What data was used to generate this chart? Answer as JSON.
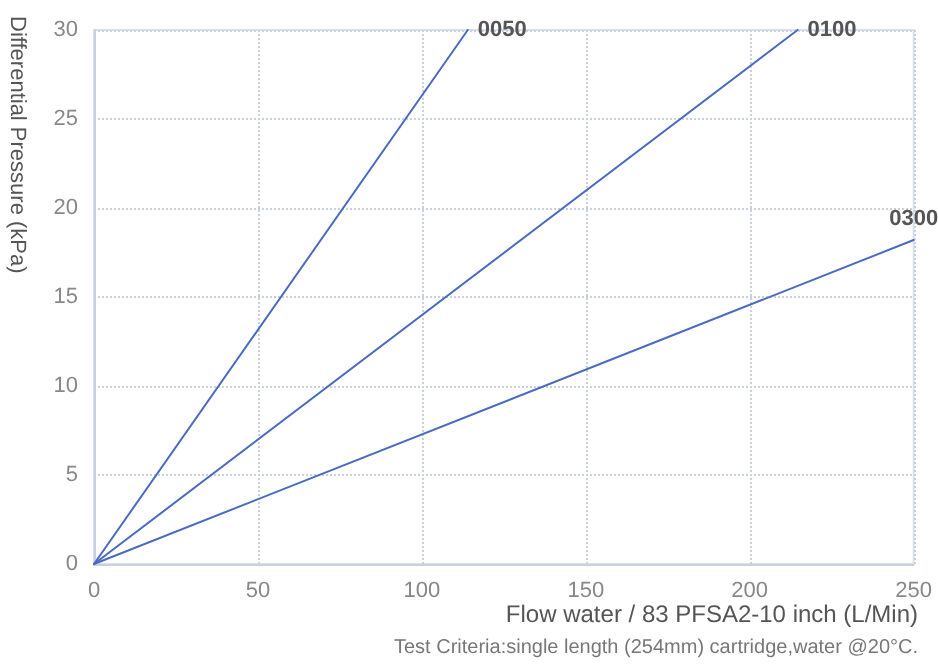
{
  "chart_data": {
    "type": "line",
    "xlabel": "Flow water / 83 PFSA2-10 inch (L/Min)",
    "ylabel": "Differential Pressure (kPa)",
    "annotations": [
      "Test Criteria:single length (254mm) cartridge,water @20°C."
    ],
    "series": [
      {
        "name": "0050",
        "color": "#4a6bc0",
        "x": [
          0,
          114
        ],
        "values": [
          0,
          30
        ]
      },
      {
        "name": "0100",
        "color": "#4a6bc0",
        "x": [
          0,
          214.6
        ],
        "values": [
          0,
          30
        ]
      },
      {
        "name": "0300",
        "color": "#4a6bc0",
        "x": [
          0,
          250
        ],
        "values": [
          0,
          18.2
        ]
      }
    ],
    "xlim": [
      0,
      250
    ],
    "xticks": [
      0,
      50,
      100,
      150,
      200,
      250
    ],
    "ylim": [
      0,
      30
    ],
    "yticks": [
      0,
      5,
      10,
      15,
      20,
      25,
      30
    ],
    "grid": true,
    "legend": false,
    "marker": "none",
    "line_style": "solid"
  }
}
